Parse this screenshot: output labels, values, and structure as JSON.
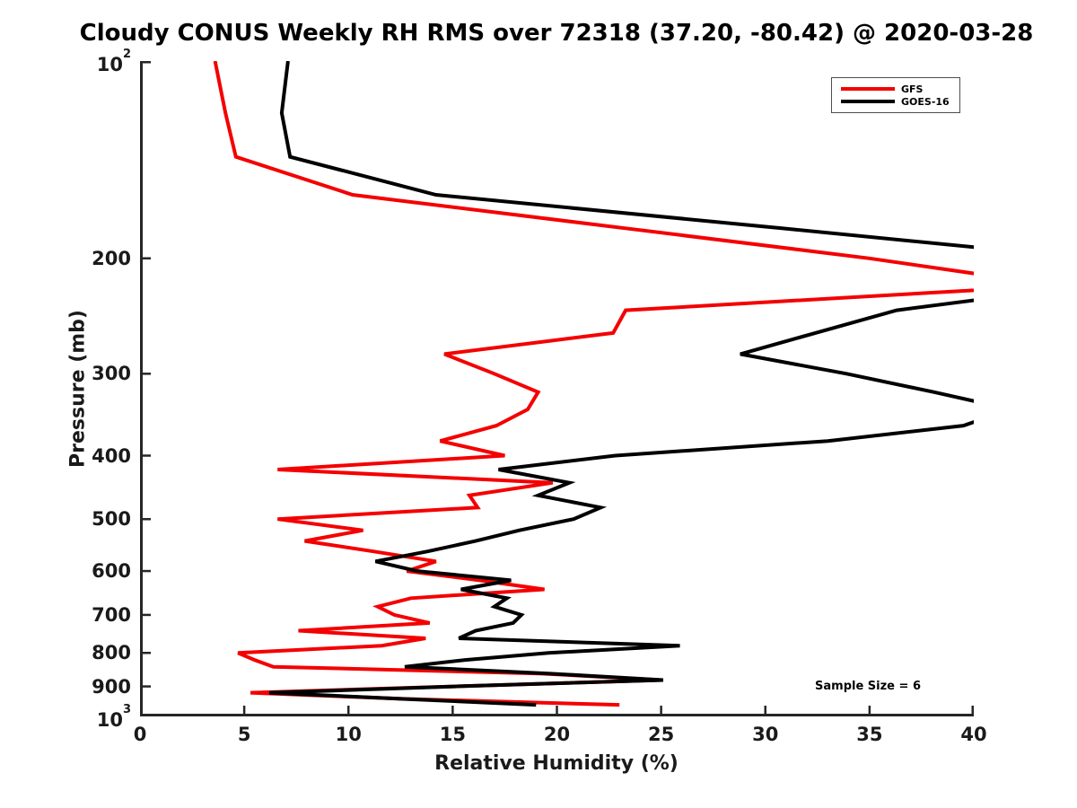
{
  "title": "Cloudy CONUS Weekly RH RMS over 72318 (37.20, -80.42) @ 2020-03-28",
  "x_axis": {
    "label": "Relative Humidity (%)",
    "min": 0,
    "max": 40,
    "ticks": [
      0,
      5,
      10,
      15,
      20,
      25,
      30,
      35,
      40
    ]
  },
  "y_axis": {
    "label": "Pressure (mb)",
    "min": 100,
    "max": 1000,
    "scale": "log",
    "ticks": [
      {
        "p": 100,
        "text": "10",
        "sup": "2"
      },
      {
        "p": 200,
        "text": "200"
      },
      {
        "p": 300,
        "text": "300"
      },
      {
        "p": 400,
        "text": "400"
      },
      {
        "p": 500,
        "text": "500"
      },
      {
        "p": 600,
        "text": "600"
      },
      {
        "p": 700,
        "text": "700"
      },
      {
        "p": 800,
        "text": "800"
      },
      {
        "p": 900,
        "text": "900"
      },
      {
        "p": 1000,
        "text": "10",
        "sup": "3"
      }
    ]
  },
  "legend": {
    "items": [
      {
        "label": "GFS",
        "color": "#f40000"
      },
      {
        "label": "GOES-16",
        "color": "#000000"
      }
    ]
  },
  "annotation": {
    "text": "Sample Size = 6"
  },
  "chart_data": {
    "type": "line",
    "title": "Cloudy CONUS Weekly RH RMS over 72318 (37.20, -80.42) @ 2020-03-28",
    "xlabel": "Relative Humidity (%)",
    "ylabel": "Pressure (mb)",
    "xlim": [
      0,
      40
    ],
    "ylim_mb": [
      100,
      1000
    ],
    "y_scale": "log",
    "grid": false,
    "legend_position": "top-right",
    "pressure_levels_mb": [
      100,
      120,
      140,
      160,
      180,
      200,
      220,
      240,
      260,
      280,
      300,
      320,
      340,
      360,
      380,
      400,
      420,
      440,
      460,
      480,
      500,
      520,
      540,
      560,
      580,
      600,
      620,
      640,
      660,
      680,
      700,
      720,
      740,
      760,
      780,
      800,
      820,
      840,
      860,
      880,
      900,
      920,
      940,
      960
    ],
    "series": [
      {
        "name": "GFS",
        "color": "#f40000",
        "rh_rms_percent": [
          3.6,
          4.1,
          4.6,
          10.2,
          23.3,
          35.0,
          44.0,
          23.3,
          22.7,
          14.6,
          17.0,
          19.1,
          18.6,
          17.1,
          14.4,
          17.5,
          6.6,
          19.8,
          15.8,
          16.2,
          6.6,
          10.7,
          7.9,
          11.2,
          14.2,
          12.8,
          16.3,
          19.4,
          13.0,
          11.4,
          12.2,
          13.9,
          7.6,
          13.7,
          11.6,
          4.7,
          5.5,
          6.4,
          19.2,
          25.0,
          15.0,
          5.3,
          12.6,
          23.0
        ]
      },
      {
        "name": "GOES-16",
        "color": "#000000",
        "rh_rms_percent": [
          7.1,
          6.8,
          7.2,
          14.2,
          30.8,
          45.5,
          45.5,
          36.3,
          32.4,
          28.8,
          33.9,
          38.1,
          41.8,
          39.5,
          33.0,
          22.8,
          17.2,
          20.6,
          19.1,
          22.1,
          20.8,
          18.2,
          16.1,
          13.8,
          11.3,
          13.3,
          17.8,
          15.4,
          17.6,
          17.0,
          18.3,
          17.9,
          16.1,
          15.3,
          25.9,
          19.6,
          15.6,
          12.7,
          19.6,
          25.1,
          15.1,
          6.2,
          12.5,
          19.0
        ]
      }
    ]
  }
}
